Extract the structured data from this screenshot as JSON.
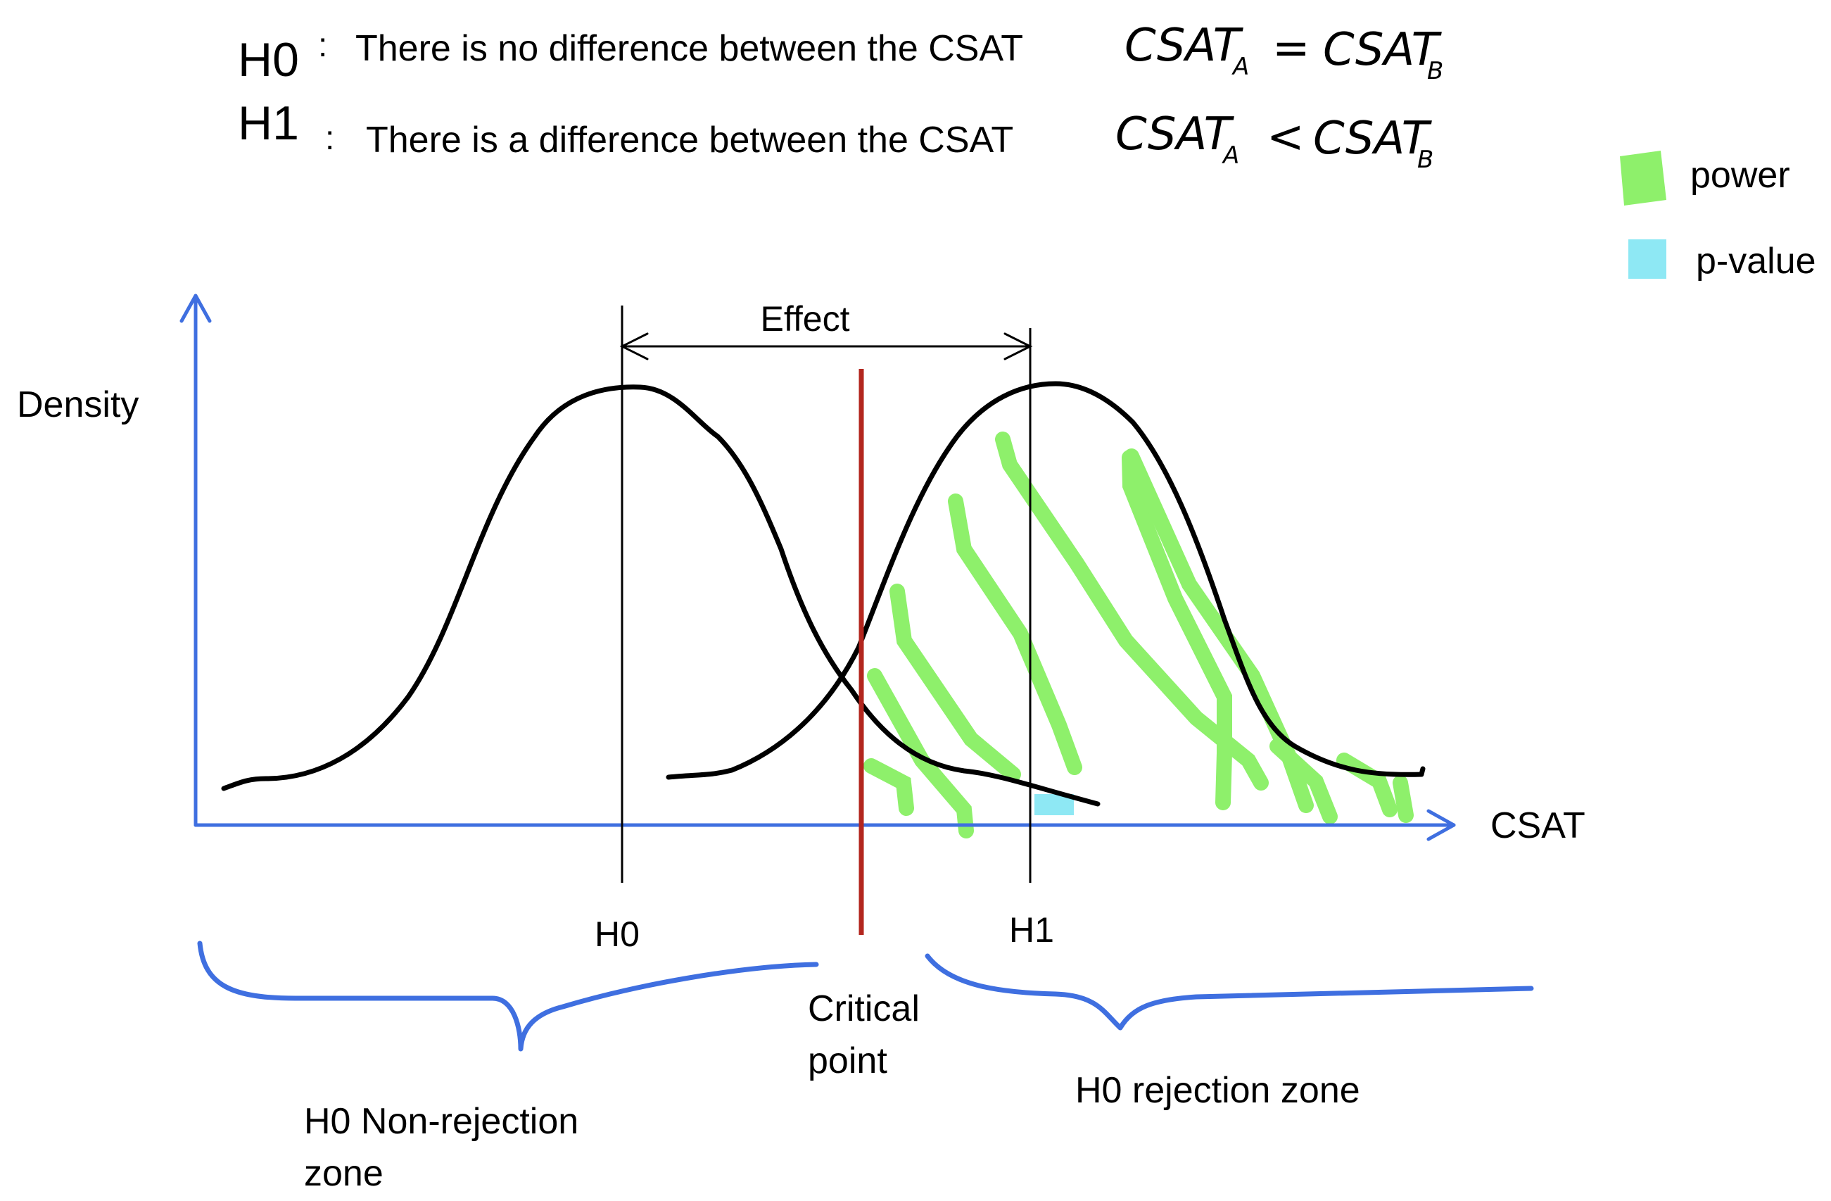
{
  "hypotheses": {
    "h0": {
      "label": "H0",
      "colon": ":",
      "text": "There is no difference between the CSAT",
      "formula": {
        "left": "CSAT",
        "left_sub": "A",
        "op": "=",
        "right": "CSAT",
        "right_sub": "B"
      }
    },
    "h1": {
      "label": "H1",
      "colon": ":",
      "text": "There is a difference between the CSAT",
      "formula": {
        "left": "CSAT",
        "left_sub": "A",
        "op": "<",
        "right": "CSAT",
        "right_sub": "B"
      }
    }
  },
  "legend": {
    "power": {
      "label": "power",
      "color": "#8ef06b"
    },
    "pvalue": {
      "label": "p-value",
      "color": "#8ee8f4"
    }
  },
  "axes": {
    "y_label": "Density",
    "x_label": "CSAT",
    "color": "#3f6fe0"
  },
  "markers": {
    "h0": "H0",
    "h1": "H1",
    "effect": "Effect",
    "critical_line": "Critical point",
    "critical_line_1": "Critical",
    "critical_line_2": "point",
    "critical_color": "#b3261e"
  },
  "zones": {
    "non_rejection_1": "H0 Non-rejection",
    "non_rejection_2": "zone",
    "rejection": "H0 rejection zone"
  },
  "colors": {
    "curve": "#000000",
    "brace": "#3f6fe0"
  }
}
